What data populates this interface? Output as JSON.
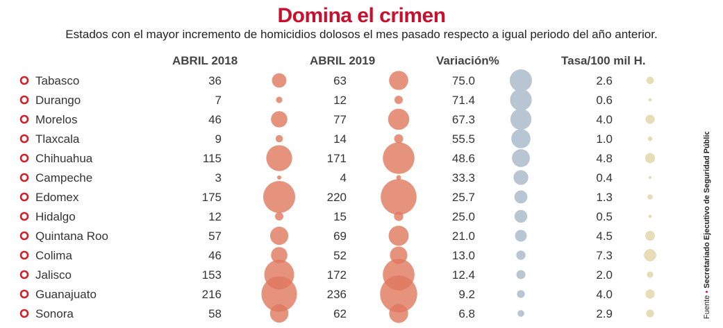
{
  "title": "Domina el crimen",
  "subtitle": "Estados con el mayor incremento de homicidios dolosos el mes pasado respecto a igual periodo del año anterior.",
  "source_label": "Fuente",
  "source_text": "Secretariado Ejecutivo de Seguridad Pública",
  "colors": {
    "title": "#c8102e",
    "marker": "#d0202a",
    "bubble_2018": "#e0785e",
    "bubble_2019": "#e0785e",
    "bubble_overlap": "#c83a30",
    "bubble_variation": "#b7c6d2",
    "bubble_rate": "#e6dcb8"
  },
  "chart_data": {
    "type": "table",
    "columns": [
      "ABRIL 2018",
      "ABRIL 2019",
      "Variación%",
      "Tasa/100 mil H."
    ],
    "states": [
      "Tabasco",
      "Durango",
      "Morelos",
      "Tlaxcala",
      "Chihuahua",
      "Campeche",
      "Edomex",
      "Hidalgo",
      "Quintana Roo",
      "Colima",
      "Jalisco",
      "Guanajuato",
      "Sonora"
    ],
    "abril_2018": [
      "36",
      "7",
      "46",
      "9",
      "115",
      "3",
      "175",
      "12",
      "57",
      "46",
      "153",
      "216",
      "58"
    ],
    "abril_2019": [
      "63",
      "12",
      "77",
      "14",
      "171",
      "4",
      "220",
      "15",
      "69",
      "52",
      "172",
      "236",
      "62"
    ],
    "variacion": [
      "75.0",
      "71.4",
      "67.3",
      "55.5",
      "48.6",
      "33.3",
      "25.7",
      "25.0",
      "21.0",
      "13.0",
      "12.4",
      "9.2",
      "6.8"
    ],
    "tasa": [
      "2.6",
      "0.6",
      "4.0",
      "1.0",
      "4.8",
      "0.4",
      "1.3",
      "0.5",
      "4.5",
      "7.3",
      "2.0",
      "4.0",
      "2.9"
    ]
  }
}
